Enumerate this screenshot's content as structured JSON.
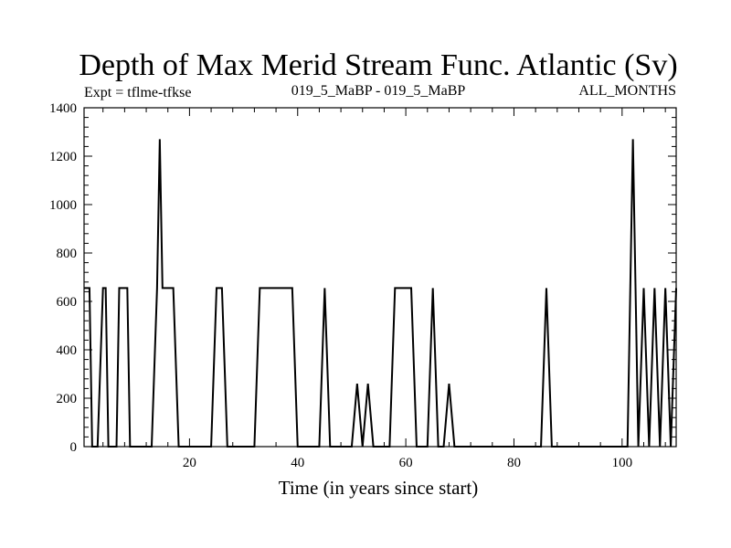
{
  "chart_data": {
    "type": "line",
    "title": "Depth of Max Merid Stream Func. Atlantic (Sv)",
    "subtitle_left": "Expt = tflme-tfkse",
    "subtitle_center": "019_5_MaBP - 019_5_MaBP",
    "subtitle_right": "ALL_MONTHS",
    "xlabel": "Time (in years since start)",
    "ylabel": "",
    "xlim": [
      0.5,
      110
    ],
    "ylim": [
      0,
      1400
    ],
    "xticks": [
      20,
      40,
      60,
      80,
      100
    ],
    "yticks": [
      0,
      200,
      400,
      600,
      800,
      1000,
      1200,
      1400
    ],
    "legend": "none",
    "grid": false,
    "line_color": "#000000",
    "series": [
      {
        "x": [
          0.5,
          1.5,
          2,
          3,
          4,
          4.5,
          5,
          6,
          6.5,
          7,
          7.5,
          8,
          8.5,
          9,
          10,
          11,
          12,
          13,
          14,
          14.5,
          15,
          16,
          17,
          18,
          19,
          20,
          21,
          22,
          23,
          24,
          25,
          26,
          27,
          28,
          29,
          30,
          31,
          32,
          33,
          34,
          35,
          36,
          37,
          38,
          39,
          40,
          41,
          42,
          43,
          44,
          45,
          46,
          47,
          48,
          49,
          50,
          51,
          52,
          53,
          54,
          55,
          56,
          57,
          58,
          59,
          60,
          61,
          62,
          63,
          64,
          65,
          66,
          67,
          68,
          69,
          70,
          71,
          72,
          73,
          74,
          75,
          76,
          77,
          78,
          79,
          80,
          81,
          82,
          83,
          84,
          85,
          86,
          87,
          88,
          89,
          90,
          91,
          92,
          93,
          94,
          95,
          96,
          97,
          98,
          99,
          100,
          101,
          102,
          103,
          104,
          105,
          106,
          107,
          108,
          109,
          110
        ],
        "values": [
          655,
          655,
          0,
          0,
          655,
          655,
          0,
          0,
          0,
          655,
          655,
          655,
          655,
          0,
          0,
          0,
          0,
          0,
          655,
          1270,
          655,
          655,
          655,
          0,
          0,
          0,
          0,
          0,
          0,
          0,
          655,
          655,
          0,
          0,
          0,
          0,
          0,
          0,
          655,
          655,
          655,
          655,
          655,
          655,
          655,
          0,
          0,
          0,
          0,
          0,
          655,
          0,
          0,
          0,
          0,
          0,
          260,
          0,
          260,
          0,
          0,
          0,
          0,
          655,
          655,
          655,
          655,
          0,
          0,
          0,
          655,
          0,
          0,
          260,
          0,
          0,
          0,
          0,
          0,
          0,
          0,
          0,
          0,
          0,
          0,
          0,
          0,
          0,
          0,
          0,
          0,
          655,
          0,
          0,
          0,
          0,
          0,
          0,
          0,
          0,
          0,
          0,
          0,
          0,
          0,
          0,
          0,
          1270,
          0,
          655,
          0,
          655,
          0,
          655,
          0,
          655
        ]
      }
    ]
  }
}
